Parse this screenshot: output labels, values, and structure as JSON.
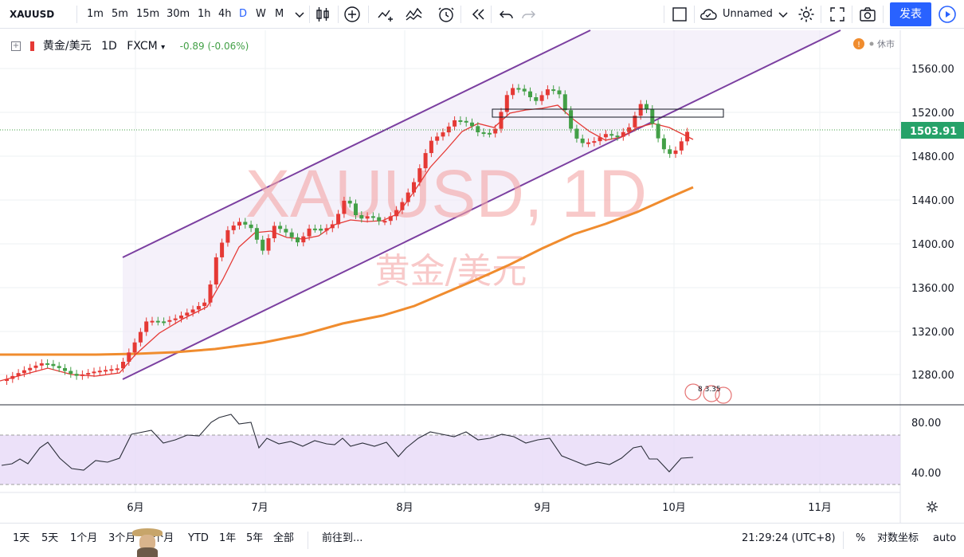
{
  "toolbar": {
    "symbol": "XAUUSD",
    "intervals": [
      "1m",
      "5m",
      "15m",
      "30m",
      "1h",
      "4h",
      "D",
      "W",
      "M"
    ],
    "active_interval": "D",
    "layout_name": "Unnamed",
    "publish_label": "发表"
  },
  "legend": {
    "name": "黄金/美元",
    "interval": "1D",
    "source": "FXCM",
    "change": "-0.89 (-0.06%)",
    "market_status": "休市"
  },
  "watermark": {
    "title": "XAUUSD, 1D",
    "subtitle": "黄金/美元"
  },
  "price_axis": {
    "ticks": [
      "1560.00",
      "1520.00",
      "1480.00",
      "1440.00",
      "1400.00",
      "1360.00",
      "1320.00",
      "1280.00"
    ],
    "last_price": "1503.91"
  },
  "rsi_axis": {
    "ticks": [
      "80.00",
      "40.00"
    ]
  },
  "time_axis": {
    "ticks": [
      "6月",
      "7月",
      "8月",
      "9月",
      "10月",
      "11月"
    ]
  },
  "event_badge": {
    "text": "8   3.35"
  },
  "bottom": {
    "ranges": [
      "1天",
      "5天",
      "1个月",
      "3个月",
      "6个月",
      "YTD",
      "1年",
      "5年",
      "全部"
    ],
    "goto_label": "前往到...",
    "clock": "21:29:24 (UTC+8)",
    "percent": "%",
    "log_label": "对数坐标",
    "auto_label": "auto"
  },
  "colors": {
    "up": "#e53935",
    "down": "#43a047",
    "channel": "#7b3fa0",
    "ma_long": "#f08c2e",
    "ma_short": "#e53935",
    "accent": "#2962ff",
    "rsi_band": "#e7daf7"
  },
  "chart_data": {
    "type": "candlestick",
    "title": "XAUUSD, 1D",
    "ylim": [
      1265,
      1590
    ],
    "last_price": 1503.91,
    "rsi_levels": [
      70,
      30
    ]
  }
}
